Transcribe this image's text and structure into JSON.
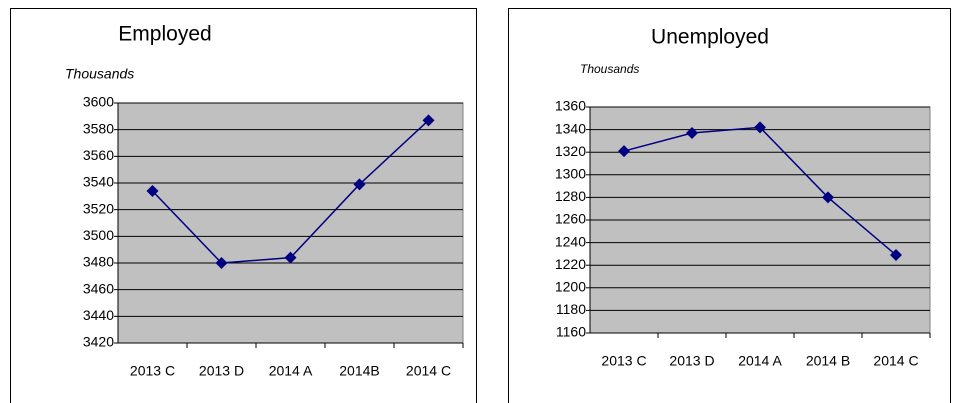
{
  "chart_data": [
    {
      "type": "line",
      "title": "Employed",
      "y_label": "Thousands",
      "categories": [
        "2013 C",
        "2013 D",
        "2014 A",
        "2014B",
        "2014 C"
      ],
      "values": [
        3534,
        3480,
        3484,
        3539,
        3587
      ],
      "color": "#000080",
      "ylim": [
        3420,
        3600
      ],
      "yticks": [
        3420,
        3440,
        3460,
        3480,
        3500,
        3520,
        3540,
        3560,
        3580,
        3600
      ],
      "grid": true,
      "plot_background": "#c0c0c0"
    },
    {
      "type": "line",
      "title": "Unemployed",
      "y_label": "Thousands",
      "categories": [
        "2013 C",
        "2013 D",
        "2014 A",
        "2014 B",
        "2014 C"
      ],
      "values": [
        1321,
        1337,
        1342,
        1280,
        1229
      ],
      "color": "#000080",
      "ylim": [
        1160,
        1360
      ],
      "yticks": [
        1160,
        1180,
        1200,
        1220,
        1240,
        1260,
        1280,
        1300,
        1320,
        1340,
        1360
      ],
      "grid": true,
      "plot_background": "#c0c0c0"
    }
  ]
}
